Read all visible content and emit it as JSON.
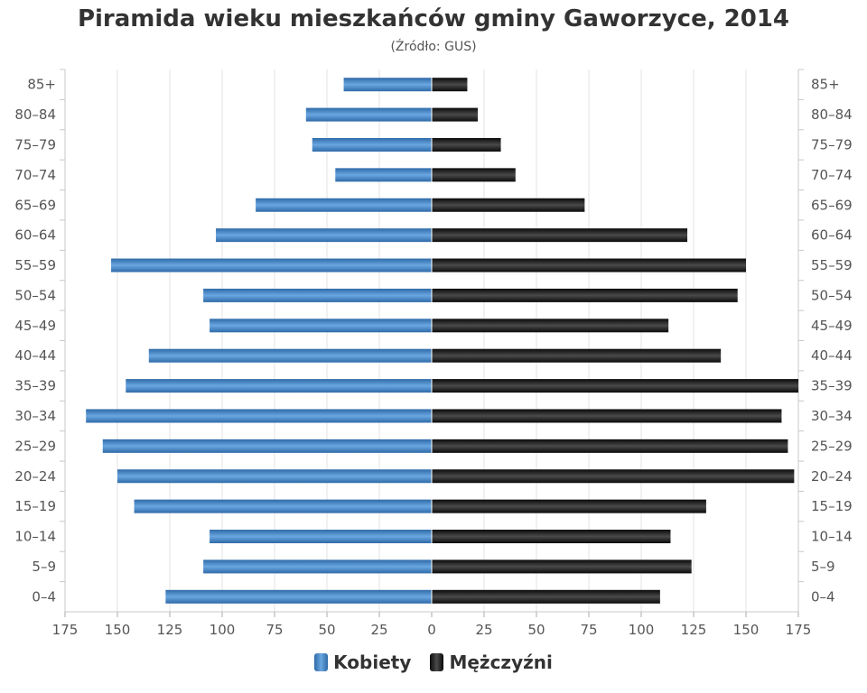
{
  "header": {
    "title": "Piramida wieku mieszkańców gminy Gaworzyce, 2014",
    "subtitle": "(Źródło: GUS)"
  },
  "chart_data": {
    "type": "bar",
    "orientation": "horizontal",
    "title": "Piramida wieku mieszkańców gminy Gaworzyce, 2014",
    "subtitle": "(Źródło: GUS)",
    "categories": [
      "85+",
      "80-84",
      "75-79",
      "70-74",
      "65-69",
      "60-64",
      "55-59",
      "50-54",
      "45-49",
      "40-44",
      "35-39",
      "30-34",
      "25-29",
      "20-24",
      "15-19",
      "10-14",
      "5-9",
      "0-4"
    ],
    "series": [
      {
        "name": "Kobiety",
        "color": "#4a86c8",
        "side": "left",
        "values": [
          42,
          60,
          57,
          46,
          84,
          103,
          153,
          109,
          106,
          135,
          146,
          165,
          157,
          150,
          142,
          106,
          109,
          127
        ]
      },
      {
        "name": "Mężczyźni",
        "color": "#1a1a1a",
        "side": "right",
        "values": [
          17,
          22,
          33,
          40,
          73,
          122,
          150,
          146,
          113,
          138,
          175,
          167,
          170,
          173,
          131,
          114,
          124,
          109
        ]
      }
    ],
    "xlim": [
      -175,
      175
    ],
    "x_ticks": [
      "175",
      "150",
      "125",
      "100",
      "75",
      "50",
      "25",
      "0",
      "25",
      "50",
      "75",
      "100",
      "125",
      "150",
      "175"
    ],
    "grid": true,
    "legend_position": "bottom-center"
  },
  "legend": {
    "items": [
      {
        "label": "Kobiety",
        "color": "#4a86c8"
      },
      {
        "label": "Mężczyźni",
        "color": "#1a1a1a"
      }
    ]
  }
}
